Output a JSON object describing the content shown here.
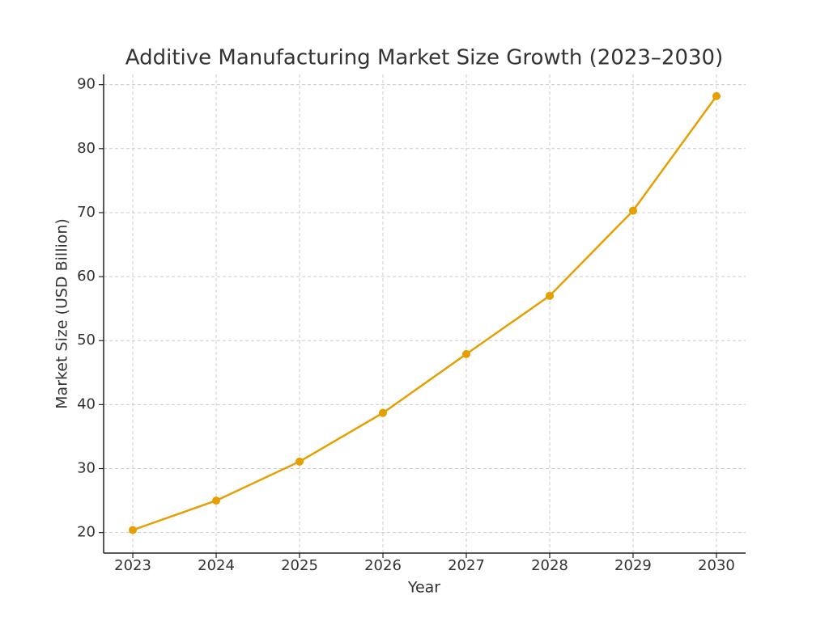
{
  "chart_data": {
    "type": "line",
    "title": "Additive Manufacturing Market Size Growth (2023–2030)",
    "x_label": "Year",
    "y_label": "Market Size (USD Billion)",
    "x": [
      2023,
      2024,
      2025,
      2026,
      2027,
      2028,
      2029,
      2030
    ],
    "series": [
      {
        "name": "Market Size",
        "color": "#e69f00",
        "values": [
          20.4,
          25.0,
          31.1,
          38.7,
          47.9,
          57.0,
          70.3,
          88.2
        ]
      }
    ],
    "xlim": [
      2022.65,
      2030.35
    ],
    "xticks": [
      2023,
      2024,
      2025,
      2026,
      2027,
      2028,
      2029,
      2030
    ],
    "ylim": [
      16.8,
      91.6
    ],
    "yticks": [
      20,
      30,
      40,
      50,
      60,
      70,
      80,
      90
    ],
    "grid": true
  }
}
